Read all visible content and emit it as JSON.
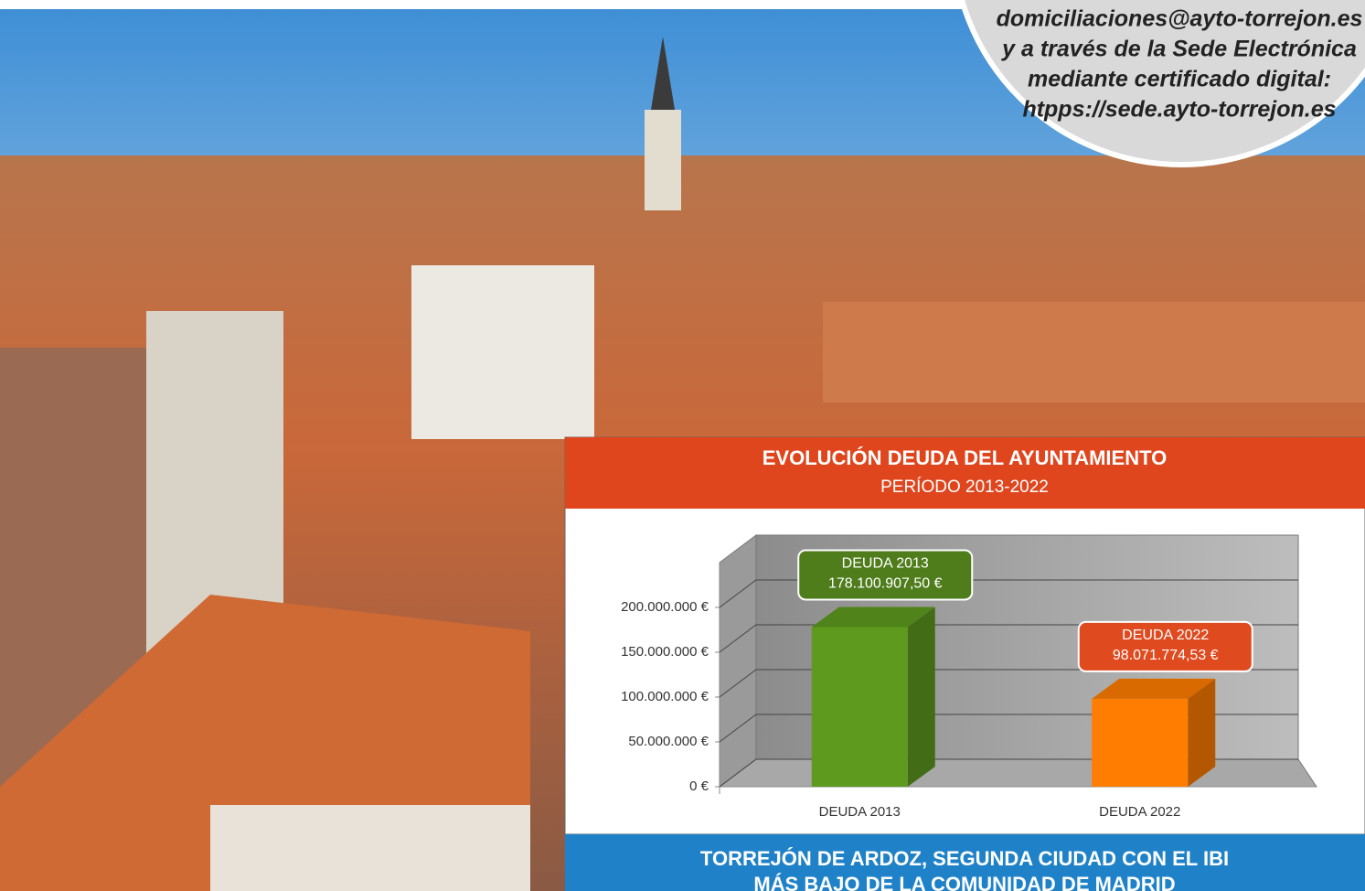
{
  "callout": {
    "lines": [
      "domiciliaciones@ayto-torrejon.es",
      "y a través de la Sede Electrónica",
      "mediante certificado digital:",
      "htpps://sede.ayto-torrejon.es"
    ]
  },
  "chart_data": {
    "type": "bar",
    "title": "EVOLUCIÓN DEUDA DEL AYUNTAMIENTO",
    "subtitle": "PERÍODO 2013-2022",
    "categories": [
      "DEUDA 2013",
      "DEUDA 2022"
    ],
    "values": [
      178100907.5,
      98071774.53
    ],
    "value_labels": [
      "178.100.907,50 €",
      "98.071.774,53 €"
    ],
    "colors": [
      "#5e9a1e",
      "#ff7d00"
    ],
    "label_colors": [
      "#4f7d1c",
      "#e04a1f"
    ],
    "ylim": [
      0,
      250000000
    ],
    "yticks": [
      {
        "value": 0,
        "label": "0 €"
      },
      {
        "value": 50000000,
        "label": "50.000.000 €"
      },
      {
        "value": 100000000,
        "label": "100.000.000 €"
      },
      {
        "value": 150000000,
        "label": "150.000.000 €"
      },
      {
        "value": 200000000,
        "label": "200.000.000 €"
      }
    ],
    "grid": true
  },
  "banner": {
    "lines": [
      "TORREJÓN DE ARDOZ, SEGUNDA CIUDAD CON EL IBI",
      "MÁS BAJO DE LA COMUNIDAD DE MADRID"
    ]
  }
}
